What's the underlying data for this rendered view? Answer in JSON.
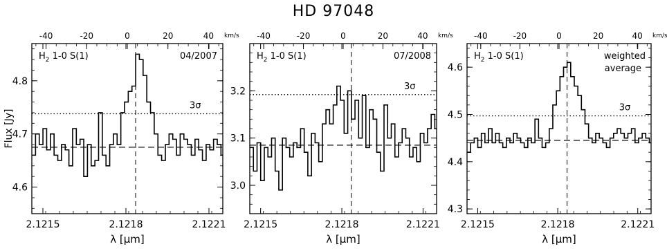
{
  "figure_title": "HD 97048",
  "shared": {
    "xlabel": "λ [μm]",
    "ylabel": "Flux [Jy]",
    "top_axis_unit": "km/s",
    "line_label_main": "H",
    "line_label_sub": "2",
    "line_label_rest": " 1-0 S(1)",
    "sigma_label": "3σ",
    "xticks": [
      2.1215,
      2.1218,
      2.1221
    ],
    "xtick_labels": [
      "2.1215",
      "2.1218",
      "2.1221"
    ],
    "top_ticks": [
      -40,
      -20,
      0,
      20,
      40
    ],
    "top_tick_labels": [
      "-40",
      "-20",
      "0",
      "20",
      "40"
    ]
  },
  "chart_data": [
    {
      "type": "line",
      "style": "histogram-step",
      "date_label": "04/2007",
      "date_label_2": "",
      "ylim": [
        4.55,
        4.87
      ],
      "yticks": [
        4.6,
        4.7,
        4.8
      ],
      "ytick_labels": [
        "4.6",
        "4.7",
        "4.8"
      ],
      "xlim": [
        2.12146,
        2.12215
      ],
      "vlim": [
        -47,
        47
      ],
      "rest_wavelength": 2.121835,
      "continuum": 4.675,
      "three_sigma": 4.738,
      "sigma_label_x": 2.12203,
      "x_start": 2.12146,
      "x_step": 1.34e-05,
      "values": [
        4.66,
        4.7,
        4.68,
        4.71,
        4.67,
        4.7,
        4.66,
        4.65,
        4.68,
        4.67,
        4.64,
        4.71,
        4.68,
        4.69,
        4.62,
        4.68,
        4.64,
        4.65,
        4.74,
        4.66,
        4.64,
        4.68,
        4.7,
        4.68,
        4.74,
        4.76,
        4.78,
        4.79,
        4.85,
        4.84,
        4.81,
        4.76,
        4.74,
        4.7,
        4.66,
        4.65,
        4.68,
        4.7,
        4.69,
        4.66,
        4.7,
        4.69,
        4.68,
        4.66,
        4.69,
        4.67,
        4.65,
        4.68,
        4.67,
        4.69,
        4.68,
        4.66,
        4.71,
        4.68,
        4.64,
        4.63,
        4.67,
        4.69,
        4.67,
        4.66,
        4.69,
        4.68,
        4.71,
        4.68,
        4.72,
        4.69
      ]
    },
    {
      "type": "line",
      "style": "histogram-step",
      "date_label": "07/2008",
      "date_label_2": "",
      "ylim": [
        2.94,
        3.3
      ],
      "yticks": [
        3.0,
        3.1,
        3.2
      ],
      "ytick_labels": [
        "3.0",
        "3.1",
        "3.2"
      ],
      "xlim": [
        2.12146,
        2.12215
      ],
      "vlim": [
        -47,
        47
      ],
      "rest_wavelength": 2.121835,
      "continuum": 3.085,
      "three_sigma": 3.192,
      "sigma_label_x": 2.12203,
      "x_start": 2.12146,
      "x_step": 1.34e-05,
      "values": [
        3.08,
        3.03,
        3.09,
        3.01,
        3.08,
        3.06,
        3.1,
        3.03,
        2.99,
        3.1,
        3.08,
        3.06,
        3.09,
        3.08,
        3.12,
        3.07,
        3.02,
        3.11,
        3.09,
        3.05,
        3.13,
        3.16,
        3.13,
        3.17,
        3.21,
        3.18,
        3.11,
        3.2,
        3.14,
        3.18,
        3.1,
        3.19,
        3.08,
        3.16,
        3.14,
        3.07,
        3.03,
        3.17,
        3.1,
        3.13,
        3.06,
        3.09,
        3.12,
        3.1,
        3.06,
        3.08,
        3.05,
        3.11,
        3.09,
        3.12,
        3.15,
        3.12,
        3.06,
        3.09,
        3.12,
        3.05,
        3.14,
        3.1,
        3.08,
        3.13,
        3.07,
        3.04,
        3.09,
        3.11,
        3.12,
        3.08
      ]
    },
    {
      "type": "line",
      "style": "histogram-step",
      "date_label": "weighted",
      "date_label_2": "average",
      "ylim": [
        4.29,
        4.65
      ],
      "yticks": [
        4.3,
        4.4,
        4.5,
        4.6
      ],
      "ytick_labels": [
        "4.3",
        "4.4",
        "4.5",
        "4.6"
      ],
      "xlim": [
        2.12146,
        2.12215
      ],
      "vlim": [
        -47,
        47
      ],
      "rest_wavelength": 2.121835,
      "continuum": 4.445,
      "three_sigma": 4.497,
      "sigma_label_x": 2.12203,
      "x_start": 2.12146,
      "x_step": 1.34e-05,
      "values": [
        4.42,
        4.44,
        4.45,
        4.43,
        4.46,
        4.44,
        4.47,
        4.44,
        4.46,
        4.44,
        4.43,
        4.45,
        4.44,
        4.46,
        4.45,
        4.44,
        4.43,
        4.45,
        4.44,
        4.49,
        4.45,
        4.43,
        4.44,
        4.47,
        4.52,
        4.55,
        4.58,
        4.6,
        4.61,
        4.58,
        4.56,
        4.54,
        4.51,
        4.48,
        4.45,
        4.44,
        4.46,
        4.45,
        4.44,
        4.43,
        4.45,
        4.46,
        4.47,
        4.46,
        4.45,
        4.46,
        4.47,
        4.44,
        4.45,
        4.46,
        4.45,
        4.44,
        4.46,
        4.47,
        4.46,
        4.44,
        4.43,
        4.46,
        4.44,
        4.47,
        4.45,
        4.43,
        4.44,
        4.46,
        4.48,
        4.45
      ]
    }
  ]
}
